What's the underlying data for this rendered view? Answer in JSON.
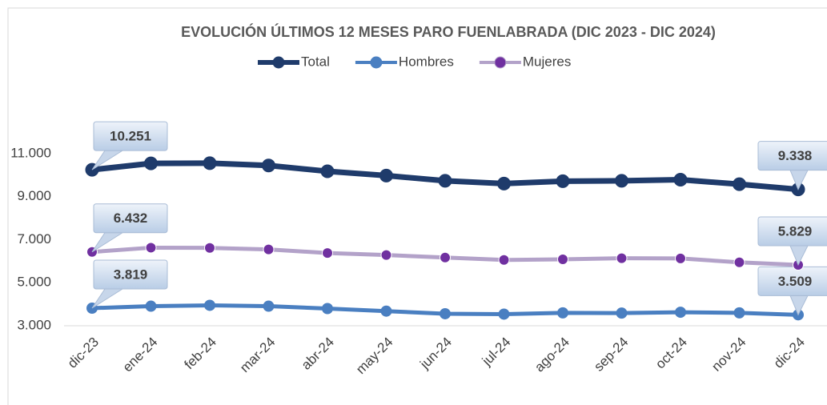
{
  "chart_data": {
    "type": "line",
    "title": "EVOLUCIÓN ÚLTIMOS 12 MESES PARO FUENLABRADA (DIC 2023 - DIC 2024)",
    "categories": [
      "dic-23",
      "ene-24",
      "feb-24",
      "mar-24",
      "abr-24",
      "may-24",
      "jun-24",
      "jul-24",
      "ago-24",
      "sep-24",
      "oct-24",
      "nov-24",
      "dic-24"
    ],
    "series": [
      {
        "name": "Total",
        "color": "#1f3b6b",
        "marker_color": "#1f3b6b",
        "values": [
          10251,
          10550,
          10560,
          10450,
          10180,
          9980,
          9740,
          9610,
          9720,
          9740,
          9790,
          9580,
          9338
        ],
        "value_labels": [
          "10.251",
          null,
          null,
          null,
          null,
          null,
          null,
          null,
          null,
          null,
          null,
          null,
          "9.338"
        ]
      },
      {
        "name": "Hombres",
        "color": "#4a7fc1",
        "marker_color": "#4a7fc1",
        "values": [
          3819,
          3910,
          3950,
          3910,
          3800,
          3680,
          3560,
          3540,
          3600,
          3590,
          3630,
          3600,
          3509
        ],
        "value_labels": [
          "3.819",
          null,
          null,
          null,
          null,
          null,
          null,
          null,
          null,
          null,
          null,
          null,
          "3.509"
        ]
      },
      {
        "name": "Mujeres",
        "color": "#b3a2c9",
        "marker_color": "#7030a0",
        "values": [
          6432,
          6630,
          6620,
          6550,
          6380,
          6290,
          6170,
          6060,
          6090,
          6140,
          6130,
          5950,
          5829
        ],
        "value_labels": [
          "6.432",
          null,
          null,
          null,
          null,
          null,
          null,
          null,
          null,
          null,
          null,
          null,
          "5.829"
        ]
      }
    ],
    "ylim": [
      3000,
      11000
    ],
    "yticks": [
      {
        "value": 3000,
        "label": "3.000"
      },
      {
        "value": 5000,
        "label": "5.000"
      },
      {
        "value": 7000,
        "label": "7.000"
      },
      {
        "value": 9000,
        "label": "9.000"
      },
      {
        "value": 11000,
        "label": "11.000"
      }
    ],
    "grid": false,
    "legend": "top"
  }
}
